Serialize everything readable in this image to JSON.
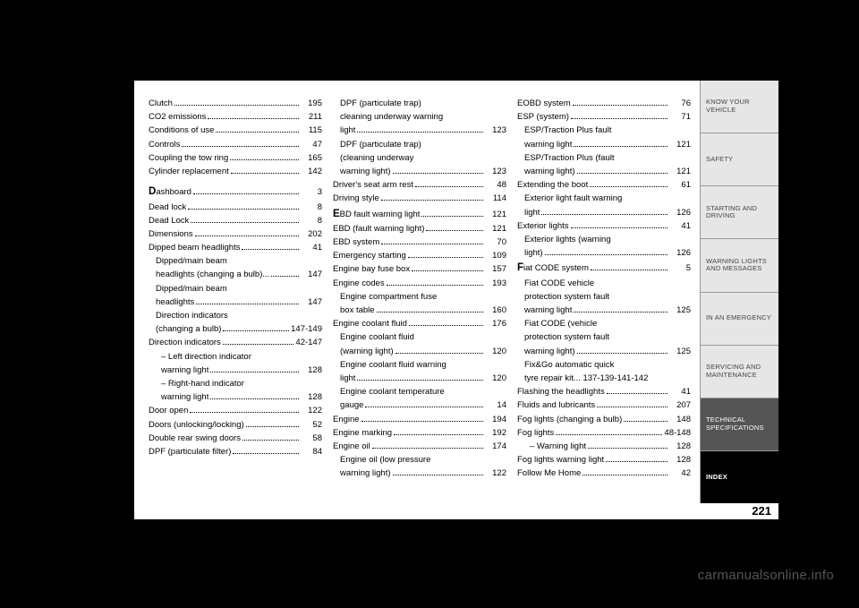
{
  "page_number": "221",
  "watermark": "carmanualsonline.info",
  "columns": [
    [
      {
        "label": "Clutch",
        "page": "195"
      },
      {
        "label": "CO2 emissions",
        "page": "211"
      },
      {
        "label": "Conditions of use",
        "page": "115"
      },
      {
        "label": "Controls",
        "page": "47"
      },
      {
        "label": "Coupling the tow ring",
        "page": "165"
      },
      {
        "label": "Cylinder replacement",
        "page": "142",
        "gapAfter": true
      },
      {
        "cap": "D",
        "label": "ashboard",
        "page": "3"
      },
      {
        "label": "Dead lock",
        "page": "8"
      },
      {
        "label": "Dead Lock",
        "page": "8"
      },
      {
        "label": "Dimensions",
        "page": "202"
      },
      {
        "label": "Dipped beam headlights",
        "page": "41"
      },
      {
        "label": "Dipped/main beam",
        "sub": "headlights (changing a bulb)...",
        "page": "147",
        "indent": 1
      },
      {
        "label": "Dipped/main beam",
        "sub": "headlights",
        "page": "147",
        "indent": 1
      },
      {
        "label": "Direction indicators",
        "sub": "(changing a bulb)",
        "page": "147-149",
        "indent": 1
      },
      {
        "label": "Direction indicators",
        "page": "42-147"
      },
      {
        "label": "– Left direction indicator",
        "sub": "warning light",
        "page": "128",
        "indent": 2
      },
      {
        "label": "– Right-hand indicator",
        "sub": "warning light",
        "page": "128",
        "indent": 2
      },
      {
        "label": "Door open",
        "page": "122"
      },
      {
        "label": "Doors (unlocking/locking)",
        "page": "52"
      },
      {
        "label": "Double rear swing doors",
        "page": "58"
      },
      {
        "label": "DPF (particulate filter)",
        "page": "84"
      }
    ],
    [
      {
        "label": "DPF (particulate trap)",
        "sub": "cleaning underway warning",
        "sub2": "light",
        "page": "123",
        "indent": 1
      },
      {
        "label": "DPF (particulate trap)",
        "sub": "(cleaning underway",
        "sub2": "warning light)",
        "page": "123",
        "indent": 1
      },
      {
        "label": "Driver's seat arm rest",
        "page": "48"
      },
      {
        "label": "Driving style",
        "page": "114"
      },
      {
        "cap": "E",
        "label": "BD fault warning light",
        "page": "121"
      },
      {
        "label": "EBD (fault warning light)",
        "page": "121"
      },
      {
        "label": "EBD system",
        "page": "70"
      },
      {
        "label": "Emergency starting",
        "page": "109"
      },
      {
        "label": "Engine bay fuse box",
        "page": "157"
      },
      {
        "label": "Engine codes",
        "page": "193"
      },
      {
        "label": "Engine compartment fuse",
        "sub": "box table",
        "page": "160",
        "indent": 1
      },
      {
        "label": "Engine coolant fluid",
        "page": "176"
      },
      {
        "label": "Engine coolant fluid",
        "sub": "(warning light)",
        "page": "120",
        "indent": 1
      },
      {
        "label": "Engine coolant fluid warning",
        "sub": "light",
        "page": "120",
        "indent": 1
      },
      {
        "label": "Engine coolant temperature",
        "sub": "gauge",
        "page": "14",
        "indent": 1
      },
      {
        "label": "Engine",
        "page": "194"
      },
      {
        "label": "Engine marking",
        "page": "192"
      },
      {
        "label": "Engine oil",
        "page": "174"
      },
      {
        "label": "Engine oil (low pressure",
        "sub": "warning light)",
        "page": "122",
        "indent": 1
      }
    ],
    [
      {
        "label": "EOBD system",
        "page": "76"
      },
      {
        "label": "ESP (system)",
        "page": "71"
      },
      {
        "label": "ESP/Traction Plus fault",
        "sub": "warning light",
        "page": "121",
        "indent": 1
      },
      {
        "label": "ESP/Traction Plus (fault",
        "sub": "warning light)",
        "page": "121",
        "indent": 1
      },
      {
        "label": "Extending the boot",
        "page": "61"
      },
      {
        "label": "Exterior light fault warning",
        "sub": "light",
        "page": "126",
        "indent": 1
      },
      {
        "label": "Exterior lights",
        "page": "41"
      },
      {
        "label": "Exterior lights (warning",
        "sub": "light)",
        "page": "126",
        "indent": 1
      },
      {
        "cap": "F",
        "label": "iat CODE system",
        "page": "5"
      },
      {
        "label": "Fiat CODE vehicle",
        "sub": "protection system fault",
        "sub2": "warning light",
        "page": "125",
        "indent": 1
      },
      {
        "label": "Fiat CODE (vehicle",
        "sub": "protection system fault",
        "sub2": "warning light)",
        "page": "125",
        "indent": 1
      },
      {
        "label": "Fix&Go automatic quick",
        "sub": "tyre repair kit...  137-139-141-142",
        "page": "",
        "indent": 1,
        "nodots": true
      },
      {
        "label": "Flashing the headlights",
        "page": "41"
      },
      {
        "label": "Fluids and lubricants",
        "page": "207"
      },
      {
        "label": "Fog lights (changing a bulb)",
        "page": "148"
      },
      {
        "label": "Fog lights",
        "page": "48-148"
      },
      {
        "label": "– Warning light",
        "page": "128",
        "indent": 2
      },
      {
        "label": "Fog lights warning light",
        "page": "128"
      },
      {
        "label": "Follow Me Home",
        "page": "42"
      }
    ]
  ],
  "tabs": [
    {
      "label": "KNOW YOUR\nVEHICLE",
      "cls": "light"
    },
    {
      "label": "SAFETY",
      "cls": "light"
    },
    {
      "label": "STARTING AND\nDRIVING",
      "cls": "light"
    },
    {
      "label": "WARNING LIGHTS\nAND MESSAGES",
      "cls": "light"
    },
    {
      "label": "IN AN EMERGENCY",
      "cls": "light"
    },
    {
      "label": "SERVICING AND\nMAINTENANCE",
      "cls": "light"
    },
    {
      "label": "TECHNICAL\nSPECIFICATIONS",
      "cls": "dark"
    },
    {
      "label": "INDEX",
      "cls": "black"
    }
  ]
}
